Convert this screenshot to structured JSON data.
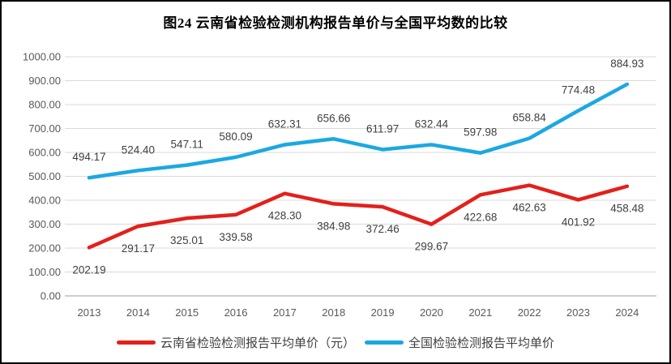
{
  "title": "图24 云南省检验检测机构报告单价与全国平均数的比较",
  "chart_data": {
    "type": "line",
    "title": "图24 云南省检验检测机构报告单价与全国平均数的比较",
    "categories": [
      "2013",
      "2014",
      "2015",
      "2016",
      "2017",
      "2018",
      "2019",
      "2020",
      "2021",
      "2022",
      "2023",
      "2024"
    ],
    "series": [
      {
        "id": "yunnan",
        "name": "云南省检验检测报告平均单价（元）",
        "color": "#e3201b",
        "values": [
          202.19,
          291.17,
          325.01,
          339.58,
          428.3,
          384.98,
          372.46,
          299.67,
          422.68,
          462.63,
          401.92,
          458.48
        ],
        "label_position": "below"
      },
      {
        "id": "national",
        "name": "全国检验检测报告平均单价",
        "color": "#1ba8e2",
        "values": [
          494.17,
          524.4,
          547.11,
          580.09,
          632.31,
          656.66,
          611.97,
          632.44,
          597.98,
          658.84,
          774.48,
          884.93
        ],
        "label_position": "above"
      }
    ],
    "ylim": [
      0,
      1000
    ],
    "yticks": [
      0,
      100,
      200,
      300,
      400,
      500,
      600,
      700,
      800,
      900,
      1000
    ],
    "ytick_labels": [
      "0.00",
      "100.00",
      "200.00",
      "300.00",
      "400.00",
      "500.00",
      "600.00",
      "700.00",
      "800.00",
      "900.00",
      "1000.00"
    ],
    "grid": true,
    "legend_position": "bottom",
    "grid_color": "#d9d9d9",
    "axis_line_color": "#bfbfbf"
  }
}
